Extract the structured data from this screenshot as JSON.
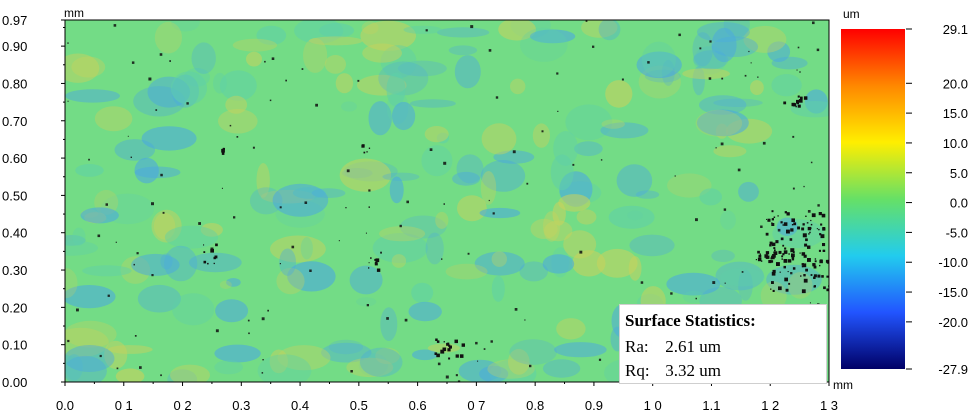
{
  "chart_data": {
    "type": "heatmap",
    "title": "",
    "x_unit": "mm",
    "y_unit": "mm",
    "xlim": [
      0.0,
      1.3
    ],
    "ylim": [
      0.0,
      0.97
    ],
    "x_ticks": [
      "0.0",
      "0 1",
      "0 2",
      "0.3",
      "0.4",
      "0.5",
      "0.6",
      "0 7",
      "0.8",
      "0.9",
      "1 0",
      "1.1",
      "1 2",
      "1 3"
    ],
    "y_ticks": [
      "0.00",
      "0.10",
      "0.20",
      "0.30",
      "0.40",
      "0.50",
      "0.60",
      "0.70",
      "0.80",
      "0.90",
      "0.97"
    ],
    "colorbar": {
      "unit": "um",
      "max": 29.1,
      "min": -27.9,
      "ticks": [
        "29.1",
        "20.0",
        "15.0",
        "10.0",
        "5.0",
        "0.0",
        "-5.0",
        "-10.0",
        "-15.0",
        "-20.0",
        "-27.9"
      ],
      "colors": [
        "#ff0000",
        "#ff8800",
        "#ffee00",
        "#66e066",
        "#22ccee",
        "#2255ff",
        "#000066"
      ]
    },
    "base_colors": {
      "surface": "#73dc86",
      "low": "#4aa8e0",
      "high": "#c8d25c",
      "missing": "#111111"
    }
  },
  "stats": {
    "title": "Surface Statistics:",
    "ra_label": "Ra:",
    "ra_value": "2.61 um",
    "rq_label": "Rq:",
    "rq_value": "3.32 um"
  }
}
